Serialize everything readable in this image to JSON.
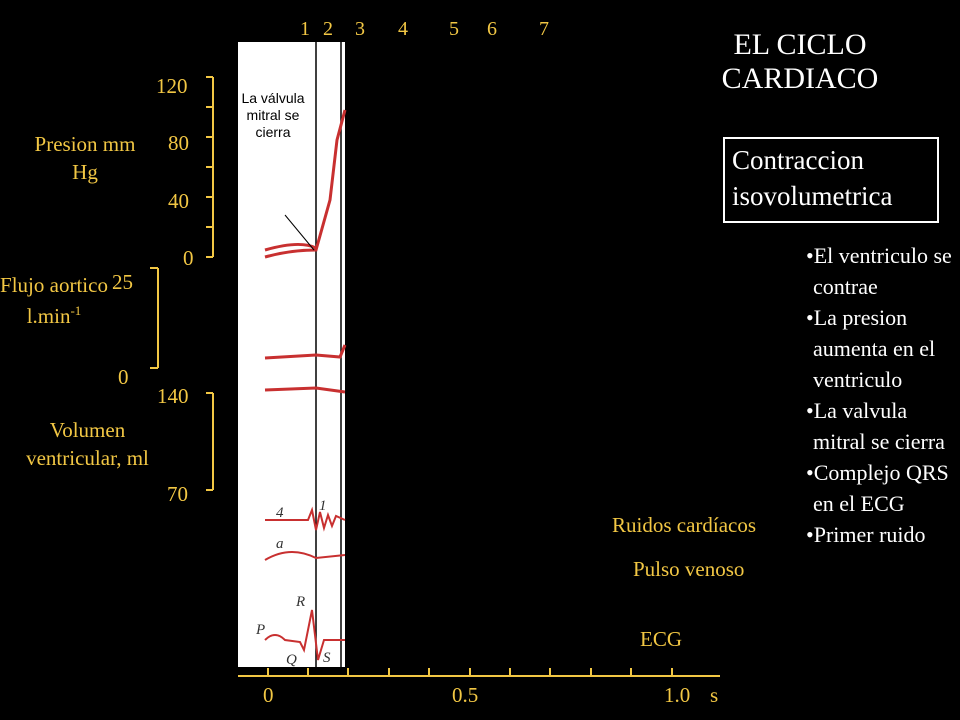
{
  "title": "EL CICLO CARDIACO",
  "phases": [
    "1",
    "2",
    "3",
    "4",
    "5",
    "6",
    "7"
  ],
  "phase_title": "Contraccion isovolumetrica",
  "bullets": [
    "•El ventriculo se contrae",
    "•La presion aumenta en el ventriculo",
    "•La valvula mitral se cierra",
    "•Complejo QRS en el ECG",
    "•Primer ruido"
  ],
  "pressure": {
    "label": "Presion mm Hg",
    "ticks": [
      "120",
      "80",
      "40",
      "0"
    ]
  },
  "flow": {
    "label": "Flujo aortico l.min",
    "unit_exponent": "-1",
    "ticks": [
      "25",
      "0"
    ]
  },
  "volume": {
    "label": "Volumen ventricular, ml",
    "ticks": [
      "140",
      "70"
    ]
  },
  "trace_labels": [
    "Ruidos cardíacos",
    "Pulso venoso",
    "ECG"
  ],
  "time_axis": {
    "ticks": [
      "0",
      "0.5",
      "1.0"
    ],
    "unit": "s"
  },
  "annotation": "La válvula mitral se cierra",
  "trace_marks": {
    "sound_4": "4",
    "sound_1": "1",
    "venous_a": "a",
    "ecg_p": "P",
    "ecg_q": "Q",
    "ecg_r": "R",
    "ecg_s": "S"
  }
}
